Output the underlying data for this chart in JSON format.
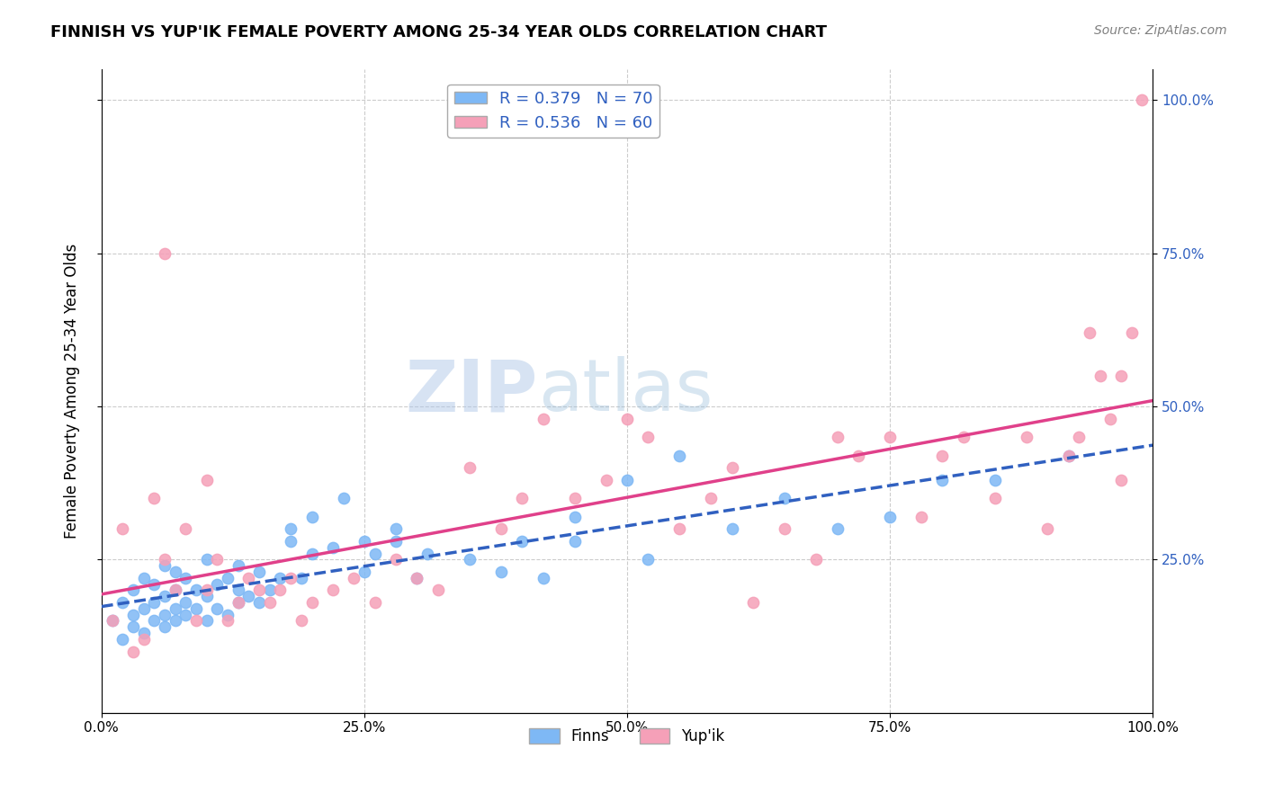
{
  "title": "FINNISH VS YUP'IK FEMALE POVERTY AMONG 25-34 YEAR OLDS CORRELATION CHART",
  "source": "Source: ZipAtlas.com",
  "ylabel": "Female Poverty Among 25-34 Year Olds",
  "xtick_labels": [
    "0.0%",
    "25.0%",
    "50.0%",
    "75.0%",
    "100.0%"
  ],
  "xtick_vals": [
    0.0,
    0.25,
    0.5,
    0.75,
    1.0
  ],
  "right_ytick_labels": [
    "25.0%",
    "50.0%",
    "75.0%",
    "100.0%"
  ],
  "right_ytick_vals": [
    0.25,
    0.5,
    0.75,
    1.0
  ],
  "finns_color": "#7eb8f5",
  "yupik_color": "#f5a0b8",
  "finns_R": 0.379,
  "finns_N": 70,
  "yupik_R": 0.536,
  "yupik_N": 60,
  "finns_line_color": "#3060c0",
  "yupik_line_color": "#e0408a",
  "background_color": "#ffffff",
  "grid_color": "#cccccc",
  "finns_scatter_x": [
    0.01,
    0.02,
    0.02,
    0.03,
    0.03,
    0.03,
    0.04,
    0.04,
    0.04,
    0.05,
    0.05,
    0.05,
    0.06,
    0.06,
    0.06,
    0.06,
    0.07,
    0.07,
    0.07,
    0.07,
    0.08,
    0.08,
    0.08,
    0.09,
    0.09,
    0.1,
    0.1,
    0.1,
    0.11,
    0.11,
    0.12,
    0.12,
    0.13,
    0.13,
    0.13,
    0.14,
    0.15,
    0.15,
    0.16,
    0.17,
    0.18,
    0.18,
    0.19,
    0.2,
    0.2,
    0.22,
    0.23,
    0.25,
    0.25,
    0.26,
    0.28,
    0.28,
    0.3,
    0.31,
    0.35,
    0.38,
    0.4,
    0.42,
    0.45,
    0.45,
    0.5,
    0.52,
    0.55,
    0.6,
    0.65,
    0.7,
    0.75,
    0.8,
    0.85,
    0.92
  ],
  "finns_scatter_y": [
    0.15,
    0.12,
    0.18,
    0.14,
    0.16,
    0.2,
    0.13,
    0.17,
    0.22,
    0.15,
    0.18,
    0.21,
    0.14,
    0.16,
    0.19,
    0.24,
    0.15,
    0.17,
    0.2,
    0.23,
    0.16,
    0.18,
    0.22,
    0.17,
    0.2,
    0.15,
    0.19,
    0.25,
    0.17,
    0.21,
    0.16,
    0.22,
    0.18,
    0.2,
    0.24,
    0.19,
    0.18,
    0.23,
    0.2,
    0.22,
    0.28,
    0.3,
    0.22,
    0.26,
    0.32,
    0.27,
    0.35,
    0.23,
    0.28,
    0.26,
    0.28,
    0.3,
    0.22,
    0.26,
    0.25,
    0.23,
    0.28,
    0.22,
    0.32,
    0.28,
    0.38,
    0.25,
    0.42,
    0.3,
    0.35,
    0.3,
    0.32,
    0.38,
    0.38,
    0.42
  ],
  "yupik_scatter_x": [
    0.01,
    0.02,
    0.03,
    0.04,
    0.05,
    0.06,
    0.06,
    0.07,
    0.08,
    0.09,
    0.1,
    0.1,
    0.11,
    0.12,
    0.13,
    0.14,
    0.15,
    0.16,
    0.17,
    0.18,
    0.19,
    0.2,
    0.22,
    0.24,
    0.26,
    0.28,
    0.3,
    0.32,
    0.35,
    0.38,
    0.4,
    0.42,
    0.45,
    0.48,
    0.5,
    0.52,
    0.55,
    0.58,
    0.6,
    0.62,
    0.65,
    0.68,
    0.7,
    0.72,
    0.75,
    0.78,
    0.8,
    0.82,
    0.85,
    0.88,
    0.9,
    0.92,
    0.93,
    0.94,
    0.95,
    0.96,
    0.97,
    0.97,
    0.98,
    0.99
  ],
  "yupik_scatter_y": [
    0.15,
    0.3,
    0.1,
    0.12,
    0.35,
    0.25,
    0.75,
    0.2,
    0.3,
    0.15,
    0.2,
    0.38,
    0.25,
    0.15,
    0.18,
    0.22,
    0.2,
    0.18,
    0.2,
    0.22,
    0.15,
    0.18,
    0.2,
    0.22,
    0.18,
    0.25,
    0.22,
    0.2,
    0.4,
    0.3,
    0.35,
    0.48,
    0.35,
    0.38,
    0.48,
    0.45,
    0.3,
    0.35,
    0.4,
    0.18,
    0.3,
    0.25,
    0.45,
    0.42,
    0.45,
    0.32,
    0.42,
    0.45,
    0.35,
    0.45,
    0.3,
    0.42,
    0.45,
    0.62,
    0.55,
    0.48,
    0.38,
    0.55,
    0.62,
    1.0
  ]
}
